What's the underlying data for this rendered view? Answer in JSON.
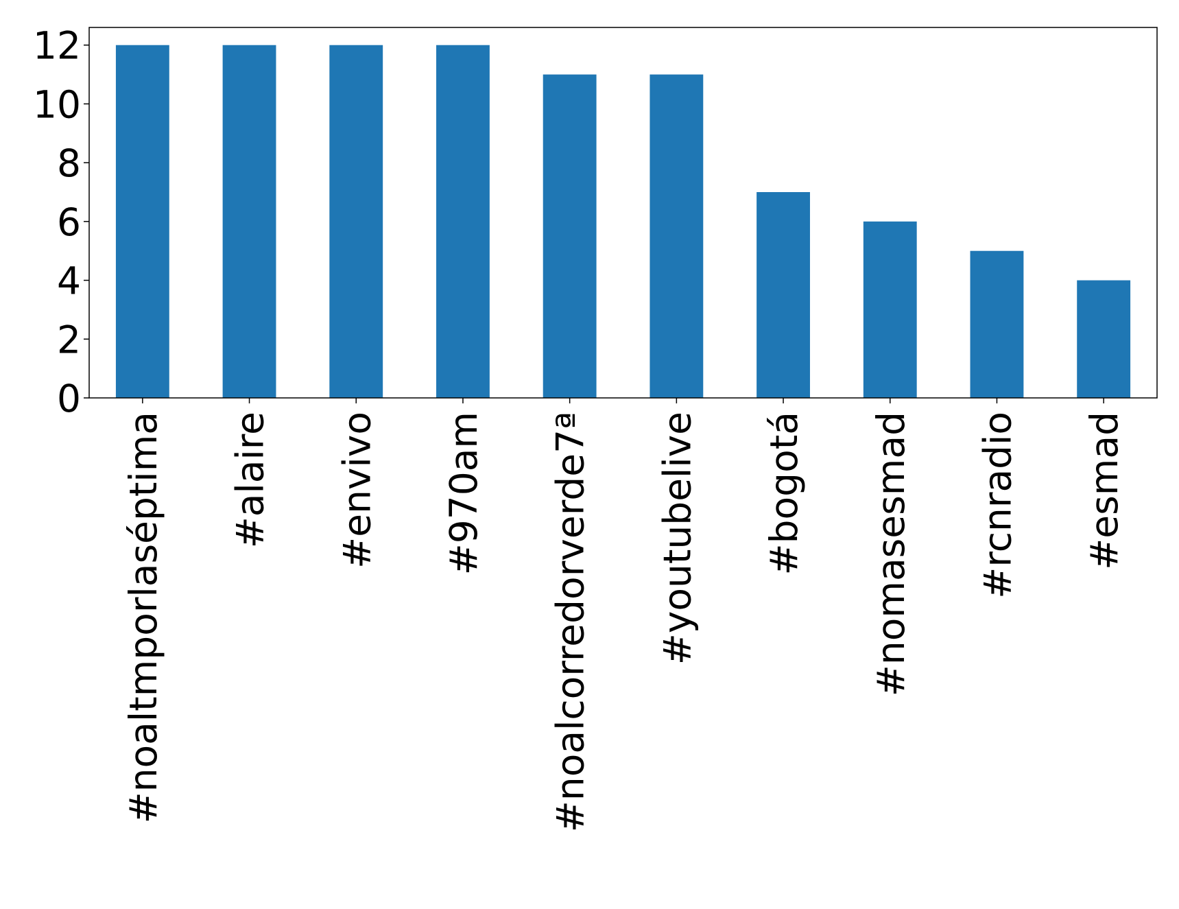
{
  "chart_data": {
    "type": "bar",
    "categories": [
      "#noaltmporlaséptima",
      "#alaire",
      "#envivo",
      "#970am",
      "#noalcorredorverde7ª",
      "#youtubelive",
      "#bogotá",
      "#nomasesmad",
      "#rcnradio",
      "#esmad"
    ],
    "values": [
      12,
      12,
      12,
      12,
      11,
      11,
      7,
      6,
      5,
      4
    ],
    "color": "#1f77b4",
    "ylim": [
      0,
      12.6
    ],
    "yticks": [
      0,
      2,
      4,
      6,
      8,
      10,
      12
    ],
    "grid": false
  }
}
